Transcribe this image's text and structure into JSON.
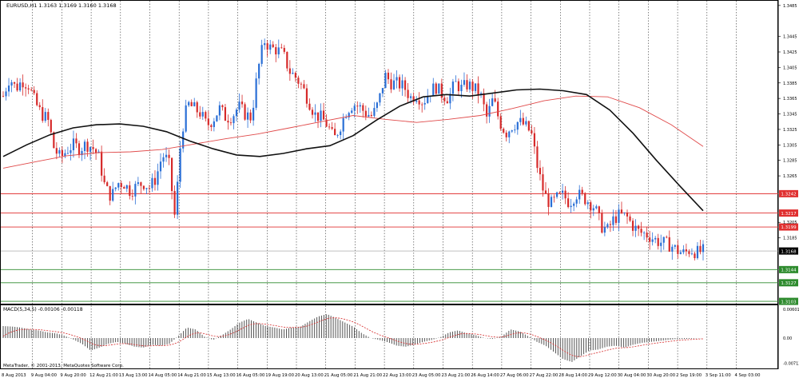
{
  "window": {
    "title": "EURUSD,H1  1.3163 1.3169 1.3160 1.3168",
    "copyright": "MetaQuotes Software Corp.",
    "copyright_full": "MetaTrader, © 2001-2013, MetaQuotes Software Corp."
  },
  "main_panel": {
    "price_axis_labels": [
      "1.3485",
      "1.3445",
      "1.3425",
      "1.3405",
      "1.3385",
      "1.3365",
      "1.3345",
      "1.3325",
      "1.3305",
      "1.3285",
      "1.3265",
      "1.3205",
      "1.3185"
    ],
    "current_price": "1.3168",
    "levels": [
      {
        "label": "1.3242",
        "type": "resistance",
        "color": "#e03030"
      },
      {
        "label": "1.3217",
        "type": "resistance",
        "color": "#e03030"
      },
      {
        "label": "1.3199",
        "type": "resistance",
        "color": "#e03030"
      },
      {
        "label": "1.3144",
        "type": "support",
        "color": "#2e8b2e"
      },
      {
        "label": "1.3127",
        "type": "support",
        "color": "#2e8b2e"
      },
      {
        "label": "1.3103",
        "type": "support",
        "color": "#2e8b2e"
      }
    ]
  },
  "macd_panel": {
    "title": "MACD(5,34,5) -0.00106 -0.00118",
    "axis_labels": [
      "0.00601",
      "0.00",
      "-0.00713"
    ]
  },
  "time_axis_labels": [
    "8 Aug 2013",
    "9 Aug 04:00",
    "9 Aug 20:00",
    "12 Aug 21:00",
    "13 Aug 13:00",
    "14 Aug 05:00",
    "14 Aug 21:00",
    "15 Aug 13:00",
    "16 Aug 05:00",
    "19 Aug 19:00",
    "20 Aug 13:00",
    "21 Aug 05:00",
    "21 Aug 21:00",
    "22 Aug 13:00",
    "23 Aug 05:00",
    "23 Aug 21:00",
    "26 Aug 14:00",
    "27 Aug 06:00",
    "27 Aug 22:00",
    "28 Aug 14:00",
    "29 Aug 12:00",
    "30 Aug 04:00",
    "30 Aug 20:00",
    "2 Sep 19:00",
    "3 Sep 11:00",
    "4 Sep 03:00"
  ],
  "colors": {
    "bull": "#2a6fd6",
    "bear": "#d62a2a",
    "ma_fast": "#111111",
    "ma_slow": "#e04a4a",
    "grid": "#333333",
    "macd_hist": "#555555",
    "macd_signal": "#d62a2a"
  },
  "chart_data": {
    "type": "candlestick",
    "symbol": "EURUSD",
    "timeframe": "H1",
    "ylim": [
      1.31,
      1.349
    ],
    "close_path": [
      1.3368,
      1.3392,
      1.3378,
      1.3388,
      1.3382,
      1.336,
      1.3345,
      1.3338,
      1.33,
      1.3288,
      1.3298,
      1.3305,
      1.33,
      1.3306,
      1.3302,
      1.329,
      1.325,
      1.3238,
      1.3256,
      1.3255,
      1.3245,
      1.3252,
      1.3256,
      1.325,
      1.3262,
      1.3292,
      1.3284,
      1.321,
      1.332,
      1.3358,
      1.3352,
      1.3346,
      1.333,
      1.3338,
      1.3352,
      1.334,
      1.3342,
      1.3355,
      1.3345,
      1.334,
      1.34,
      1.344,
      1.343,
      1.3428,
      1.3422,
      1.34,
      1.3392,
      1.338,
      1.3362,
      1.3344,
      1.334,
      1.333,
      1.3312,
      1.333,
      1.335,
      1.3358,
      1.3354,
      1.3346,
      1.3342,
      1.336,
      1.3395,
      1.3385,
      1.3384,
      1.338,
      1.3366,
      1.337,
      1.336,
      1.3374,
      1.338,
      1.337,
      1.3365,
      1.3385,
      1.3378,
      1.3383,
      1.3378,
      1.337,
      1.334,
      1.3365,
      1.3335,
      1.332,
      1.333,
      1.3335,
      1.333,
      1.332,
      1.3275,
      1.3242,
      1.3228,
      1.3236,
      1.324,
      1.323,
      1.3242,
      1.3238,
      1.3232,
      1.3224,
      1.32,
      1.3195,
      1.321,
      1.3215,
      1.3212,
      1.32,
      1.3192,
      1.319,
      1.3185,
      1.318,
      1.3178,
      1.3175,
      1.3168,
      1.3165,
      1.317,
      1.3166,
      1.3168
    ],
    "ma_fast_path": [
      1.329,
      1.3305,
      1.3318,
      1.3327,
      1.3331,
      1.3332,
      1.3329,
      1.3322,
      1.331,
      1.33,
      1.3292,
      1.329,
      1.3294,
      1.33,
      1.3304,
      1.3317,
      1.3337,
      1.3355,
      1.3367,
      1.337,
      1.3368,
      1.3372,
      1.3376,
      1.3377,
      1.3375,
      1.337,
      1.335,
      1.332,
      1.3285,
      1.3252,
      1.322
    ],
    "ma_slow_path": [
      1.3275,
      1.3283,
      1.3291,
      1.3295,
      1.3296,
      1.3299,
      1.3306,
      1.3313,
      1.3319,
      1.3327,
      1.3335,
      1.3343,
      1.3338,
      1.3334,
      1.3338,
      1.3343,
      1.3352,
      1.3362,
      1.3368,
      1.3367,
      1.3353,
      1.3331,
      1.3303
    ],
    "macd_hist": [
      0.0025,
      0.0024,
      0.0022,
      0.0018,
      0.0016,
      0.0012,
      0.001,
      0.0005,
      -0.0003,
      -0.0012,
      -0.0026,
      -0.002,
      -0.0012,
      -0.0008,
      -0.0012,
      -0.0018,
      -0.002,
      -0.0014,
      -0.0016,
      -0.0012,
      0.0004,
      0.0022,
      0.0018,
      0.0003,
      -0.0004,
      0.0006,
      0.0018,
      0.0032,
      0.004,
      0.0032,
      0.0025,
      0.0022,
      0.0018,
      0.0022,
      0.0024,
      0.0035,
      0.0045,
      0.005,
      0.0042,
      0.0033,
      0.0024,
      0.001,
      0.0,
      -0.0004,
      -0.0009,
      -0.0016,
      -0.0018,
      -0.0014,
      -0.0008,
      -0.0004,
      0.0002,
      0.0012,
      0.0016,
      0.001,
      0.0006,
      0.0,
      -0.0002,
      0.0004,
      0.0018,
      0.0014,
      0.0004,
      -0.0008,
      -0.0016,
      -0.003,
      -0.0044,
      -0.005,
      -0.0038,
      -0.0026,
      -0.0024,
      -0.0018,
      -0.0016,
      -0.002,
      -0.0014,
      -0.001,
      -0.0008,
      -0.0006,
      -0.0004,
      -0.0002,
      -0.0002,
      -0.0001,
      0.0
    ]
  }
}
